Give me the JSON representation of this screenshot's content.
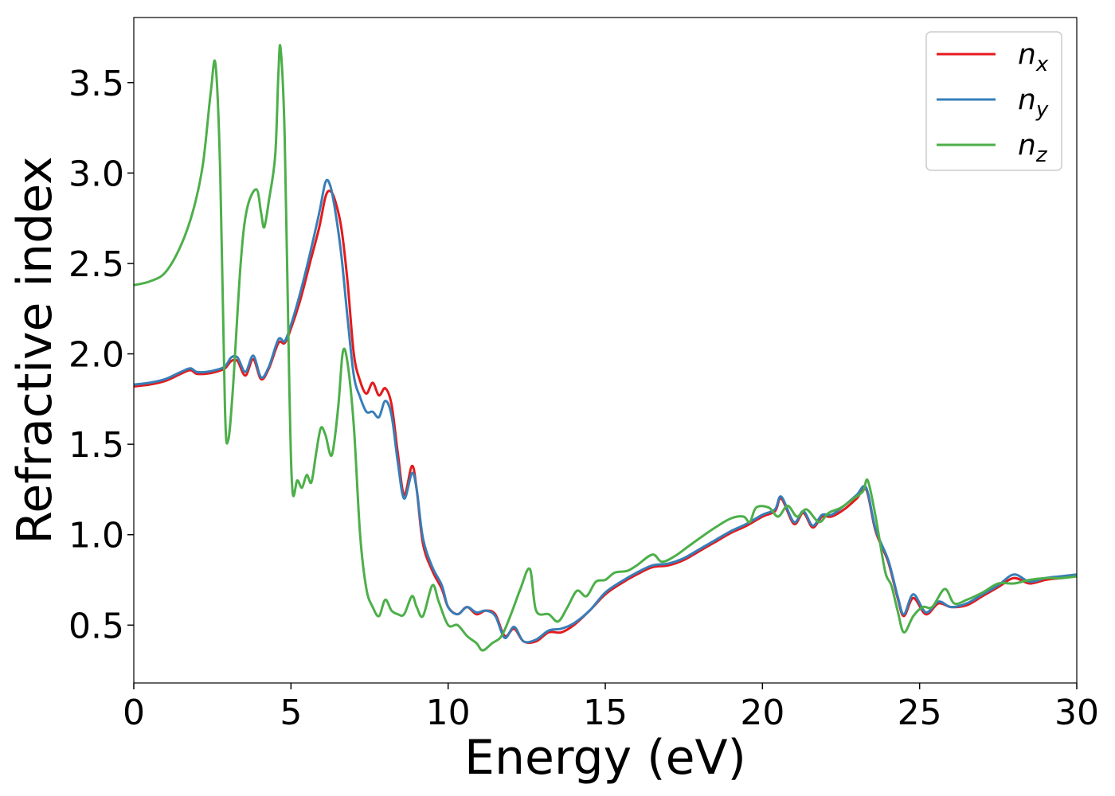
{
  "chart_data": {
    "type": "line",
    "title": "",
    "xlabel": "Energy (eV)",
    "ylabel": "Refractive index",
    "xlim": [
      0,
      30
    ],
    "ylim": [
      0.18,
      3.86
    ],
    "xticks": [
      0,
      5,
      10,
      15,
      20,
      25,
      30
    ],
    "xtick_labels": [
      "0",
      "5",
      "10",
      "15",
      "20",
      "25",
      "30"
    ],
    "yticks": [
      0.5,
      1.0,
      1.5,
      2.0,
      2.5,
      3.0,
      3.5
    ],
    "ytick_labels": [
      "0.5",
      "1.0",
      "1.5",
      "2.0",
      "2.5",
      "3.0",
      "3.5"
    ],
    "grid": false,
    "legend_position": "top-right",
    "series": [
      {
        "name": "n_x",
        "legend_base": "n",
        "legend_sub": "x",
        "color": "#e41a1c",
        "points": [
          [
            0,
            1.82
          ],
          [
            0.5,
            1.83
          ],
          [
            1,
            1.85
          ],
          [
            1.5,
            1.89
          ],
          [
            1.8,
            1.91
          ],
          [
            2.0,
            1.89
          ],
          [
            2.3,
            1.89
          ],
          [
            2.6,
            1.9
          ],
          [
            2.9,
            1.92
          ],
          [
            3.1,
            1.96
          ],
          [
            3.3,
            1.96
          ],
          [
            3.55,
            1.88
          ],
          [
            3.8,
            1.97
          ],
          [
            4.05,
            1.86
          ],
          [
            4.3,
            1.92
          ],
          [
            4.6,
            2.06
          ],
          [
            4.8,
            2.06
          ],
          [
            5.0,
            2.14
          ],
          [
            5.3,
            2.3
          ],
          [
            5.6,
            2.5
          ],
          [
            5.9,
            2.7
          ],
          [
            6.1,
            2.87
          ],
          [
            6.25,
            2.9
          ],
          [
            6.4,
            2.85
          ],
          [
            6.6,
            2.7
          ],
          [
            6.8,
            2.4
          ],
          [
            7.0,
            2.0
          ],
          [
            7.2,
            1.85
          ],
          [
            7.4,
            1.78
          ],
          [
            7.6,
            1.84
          ],
          [
            7.8,
            1.77
          ],
          [
            8.0,
            1.81
          ],
          [
            8.2,
            1.72
          ],
          [
            8.4,
            1.45
          ],
          [
            8.6,
            1.22
          ],
          [
            8.85,
            1.38
          ],
          [
            9.0,
            1.25
          ],
          [
            9.2,
            0.95
          ],
          [
            9.5,
            0.8
          ],
          [
            9.8,
            0.7
          ],
          [
            10.0,
            0.6
          ],
          [
            10.3,
            0.56
          ],
          [
            10.6,
            0.6
          ],
          [
            10.9,
            0.56
          ],
          [
            11.2,
            0.58
          ],
          [
            11.5,
            0.56
          ],
          [
            11.8,
            0.44
          ],
          [
            12.1,
            0.48
          ],
          [
            12.4,
            0.41
          ],
          [
            12.8,
            0.41
          ],
          [
            13.2,
            0.46
          ],
          [
            13.6,
            0.46
          ],
          [
            14.0,
            0.5
          ],
          [
            14.5,
            0.58
          ],
          [
            15.0,
            0.67
          ],
          [
            15.5,
            0.73
          ],
          [
            16.0,
            0.78
          ],
          [
            16.5,
            0.82
          ],
          [
            17.0,
            0.83
          ],
          [
            17.5,
            0.86
          ],
          [
            18.0,
            0.91
          ],
          [
            18.5,
            0.96
          ],
          [
            19.0,
            1.01
          ],
          [
            19.5,
            1.05
          ],
          [
            20.0,
            1.1
          ],
          [
            20.4,
            1.13
          ],
          [
            20.6,
            1.2
          ],
          [
            21.0,
            1.06
          ],
          [
            21.3,
            1.12
          ],
          [
            21.6,
            1.04
          ],
          [
            21.9,
            1.1
          ],
          [
            22.2,
            1.1
          ],
          [
            22.6,
            1.14
          ],
          [
            23.0,
            1.2
          ],
          [
            23.3,
            1.25
          ],
          [
            23.6,
            1.02
          ],
          [
            24.0,
            0.85
          ],
          [
            24.3,
            0.65
          ],
          [
            24.5,
            0.55
          ],
          [
            24.8,
            0.65
          ],
          [
            25.2,
            0.56
          ],
          [
            25.6,
            0.62
          ],
          [
            26.0,
            0.6
          ],
          [
            26.5,
            0.61
          ],
          [
            27.0,
            0.66
          ],
          [
            27.5,
            0.71
          ],
          [
            28.0,
            0.76
          ],
          [
            28.5,
            0.73
          ],
          [
            29.0,
            0.75
          ],
          [
            29.5,
            0.76
          ],
          [
            30.0,
            0.77
          ]
        ]
      },
      {
        "name": "n_y",
        "legend_base": "n",
        "legend_sub": "y",
        "color": "#377eb8",
        "points": [
          [
            0,
            1.83
          ],
          [
            0.5,
            1.84
          ],
          [
            1,
            1.86
          ],
          [
            1.5,
            1.9
          ],
          [
            1.8,
            1.92
          ],
          [
            2.0,
            1.9
          ],
          [
            2.3,
            1.9
          ],
          [
            2.6,
            1.91
          ],
          [
            2.9,
            1.93
          ],
          [
            3.1,
            1.98
          ],
          [
            3.3,
            1.98
          ],
          [
            3.55,
            1.9
          ],
          [
            3.8,
            1.99
          ],
          [
            4.05,
            1.87
          ],
          [
            4.3,
            1.93
          ],
          [
            4.6,
            2.08
          ],
          [
            4.8,
            2.07
          ],
          [
            5.0,
            2.16
          ],
          [
            5.3,
            2.34
          ],
          [
            5.6,
            2.55
          ],
          [
            5.9,
            2.78
          ],
          [
            6.1,
            2.95
          ],
          [
            6.25,
            2.93
          ],
          [
            6.4,
            2.8
          ],
          [
            6.6,
            2.55
          ],
          [
            6.8,
            2.2
          ],
          [
            7.0,
            1.88
          ],
          [
            7.2,
            1.76
          ],
          [
            7.4,
            1.68
          ],
          [
            7.6,
            1.68
          ],
          [
            7.8,
            1.65
          ],
          [
            8.0,
            1.74
          ],
          [
            8.2,
            1.66
          ],
          [
            8.4,
            1.4
          ],
          [
            8.6,
            1.2
          ],
          [
            8.85,
            1.34
          ],
          [
            9.0,
            1.25
          ],
          [
            9.2,
            0.98
          ],
          [
            9.5,
            0.82
          ],
          [
            9.8,
            0.72
          ],
          [
            10.0,
            0.6
          ],
          [
            10.3,
            0.56
          ],
          [
            10.6,
            0.6
          ],
          [
            10.9,
            0.57
          ],
          [
            11.2,
            0.58
          ],
          [
            11.5,
            0.55
          ],
          [
            11.8,
            0.43
          ],
          [
            12.1,
            0.49
          ],
          [
            12.4,
            0.41
          ],
          [
            12.8,
            0.42
          ],
          [
            13.2,
            0.47
          ],
          [
            13.6,
            0.48
          ],
          [
            14.0,
            0.51
          ],
          [
            14.5,
            0.58
          ],
          [
            15.0,
            0.68
          ],
          [
            15.5,
            0.74
          ],
          [
            16.0,
            0.79
          ],
          [
            16.5,
            0.83
          ],
          [
            17.0,
            0.84
          ],
          [
            17.5,
            0.87
          ],
          [
            18.0,
            0.92
          ],
          [
            18.5,
            0.97
          ],
          [
            19.0,
            1.02
          ],
          [
            19.5,
            1.06
          ],
          [
            20.0,
            1.11
          ],
          [
            20.4,
            1.14
          ],
          [
            20.6,
            1.21
          ],
          [
            21.0,
            1.07
          ],
          [
            21.3,
            1.13
          ],
          [
            21.6,
            1.05
          ],
          [
            21.9,
            1.11
          ],
          [
            22.2,
            1.11
          ],
          [
            22.6,
            1.16
          ],
          [
            23.0,
            1.22
          ],
          [
            23.3,
            1.26
          ],
          [
            23.6,
            1.03
          ],
          [
            24.0,
            0.86
          ],
          [
            24.3,
            0.66
          ],
          [
            24.5,
            0.56
          ],
          [
            24.8,
            0.67
          ],
          [
            25.2,
            0.57
          ],
          [
            25.6,
            0.63
          ],
          [
            26.0,
            0.6
          ],
          [
            26.5,
            0.62
          ],
          [
            27.0,
            0.67
          ],
          [
            27.5,
            0.72
          ],
          [
            28.0,
            0.78
          ],
          [
            28.5,
            0.74
          ],
          [
            29.0,
            0.76
          ],
          [
            29.5,
            0.77
          ],
          [
            30.0,
            0.78
          ]
        ]
      },
      {
        "name": "n_z",
        "legend_base": "n",
        "legend_sub": "z",
        "color": "#4daf4a",
        "points": [
          [
            0,
            2.38
          ],
          [
            0.5,
            2.4
          ],
          [
            1.0,
            2.45
          ],
          [
            1.5,
            2.6
          ],
          [
            1.9,
            2.8
          ],
          [
            2.2,
            3.05
          ],
          [
            2.45,
            3.45
          ],
          [
            2.6,
            3.6
          ],
          [
            2.75,
            3.0
          ],
          [
            2.9,
            1.7
          ],
          [
            3.0,
            1.52
          ],
          [
            3.15,
            1.8
          ],
          [
            3.4,
            2.5
          ],
          [
            3.6,
            2.8
          ],
          [
            3.9,
            2.91
          ],
          [
            4.05,
            2.78
          ],
          [
            4.15,
            2.7
          ],
          [
            4.3,
            2.85
          ],
          [
            4.5,
            3.1
          ],
          [
            4.6,
            3.55
          ],
          [
            4.67,
            3.69
          ],
          [
            4.8,
            3.2
          ],
          [
            4.95,
            1.8
          ],
          [
            5.05,
            1.24
          ],
          [
            5.2,
            1.3
          ],
          [
            5.35,
            1.26
          ],
          [
            5.5,
            1.33
          ],
          [
            5.65,
            1.29
          ],
          [
            5.8,
            1.45
          ],
          [
            5.95,
            1.59
          ],
          [
            6.1,
            1.55
          ],
          [
            6.3,
            1.44
          ],
          [
            6.5,
            1.7
          ],
          [
            6.65,
            2.01
          ],
          [
            6.8,
            1.95
          ],
          [
            7.0,
            1.6
          ],
          [
            7.2,
            1.0
          ],
          [
            7.4,
            0.7
          ],
          [
            7.6,
            0.6
          ],
          [
            7.8,
            0.55
          ],
          [
            8.0,
            0.64
          ],
          [
            8.2,
            0.58
          ],
          [
            8.4,
            0.56
          ],
          [
            8.6,
            0.56
          ],
          [
            8.85,
            0.66
          ],
          [
            9.0,
            0.6
          ],
          [
            9.2,
            0.55
          ],
          [
            9.5,
            0.72
          ],
          [
            9.7,
            0.63
          ],
          [
            10.0,
            0.5
          ],
          [
            10.3,
            0.5
          ],
          [
            10.6,
            0.44
          ],
          [
            10.9,
            0.4
          ],
          [
            11.1,
            0.36
          ],
          [
            11.4,
            0.4
          ],
          [
            11.7,
            0.44
          ],
          [
            12.0,
            0.56
          ],
          [
            12.3,
            0.7
          ],
          [
            12.6,
            0.81
          ],
          [
            12.8,
            0.58
          ],
          [
            13.2,
            0.56
          ],
          [
            13.5,
            0.52
          ],
          [
            13.8,
            0.6
          ],
          [
            14.1,
            0.69
          ],
          [
            14.4,
            0.66
          ],
          [
            14.7,
            0.74
          ],
          [
            15.0,
            0.75
          ],
          [
            15.3,
            0.79
          ],
          [
            15.7,
            0.8
          ],
          [
            16.0,
            0.83
          ],
          [
            16.5,
            0.89
          ],
          [
            16.8,
            0.85
          ],
          [
            17.2,
            0.88
          ],
          [
            17.6,
            0.93
          ],
          [
            18.0,
            0.98
          ],
          [
            18.5,
            1.04
          ],
          [
            19.0,
            1.09
          ],
          [
            19.4,
            1.1
          ],
          [
            19.6,
            1.07
          ],
          [
            19.8,
            1.15
          ],
          [
            20.2,
            1.15
          ],
          [
            20.5,
            1.1
          ],
          [
            20.8,
            1.16
          ],
          [
            21.1,
            1.1
          ],
          [
            21.4,
            1.14
          ],
          [
            21.8,
            1.07
          ],
          [
            22.1,
            1.12
          ],
          [
            22.5,
            1.15
          ],
          [
            22.9,
            1.2
          ],
          [
            23.2,
            1.24
          ],
          [
            23.35,
            1.3
          ],
          [
            23.6,
            1.1
          ],
          [
            23.9,
            0.8
          ],
          [
            24.1,
            0.72
          ],
          [
            24.3,
            0.58
          ],
          [
            24.5,
            0.46
          ],
          [
            24.8,
            0.55
          ],
          [
            25.1,
            0.6
          ],
          [
            25.4,
            0.6
          ],
          [
            25.8,
            0.7
          ],
          [
            26.1,
            0.62
          ],
          [
            26.5,
            0.64
          ],
          [
            27.0,
            0.68
          ],
          [
            27.5,
            0.73
          ],
          [
            28.0,
            0.73
          ],
          [
            28.5,
            0.75
          ],
          [
            29.0,
            0.76
          ],
          [
            29.5,
            0.76
          ],
          [
            30.0,
            0.77
          ]
        ]
      }
    ]
  }
}
